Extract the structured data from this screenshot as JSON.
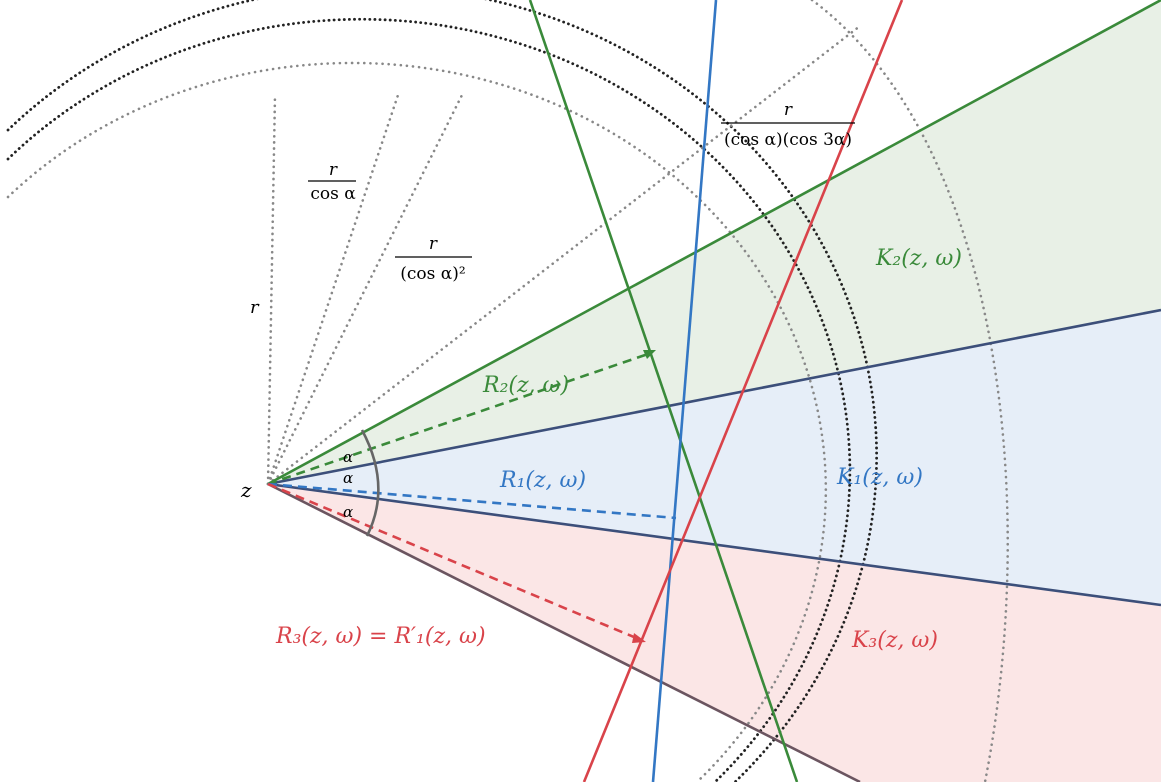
{
  "colors": {
    "green": "#3a8a3a",
    "blue": "#3377c4",
    "red": "#d9434a",
    "greenFill": "#e8f0e6",
    "blueFill": "#e6eef8",
    "redFill": "#fbe6e6",
    "dotted": "#888888",
    "dottedDark": "#222222",
    "boundary": "#3c4f7a"
  },
  "labels": {
    "z": "z",
    "r": "r",
    "frac1_num": "r",
    "frac1_den": "cos α",
    "frac2_num": "r",
    "frac2_den": "(cos α)²",
    "frac3_num": "r",
    "frac3_den": "(cos α)(cos 3α)",
    "alpha1": "α",
    "alpha2": "α",
    "alpha3": "α",
    "K1": "K₁(z, ω)",
    "K2": "K₂(z, ω)",
    "K3": "K₃(z, ω)",
    "R1": "R₁(z, ω)",
    "R2": "R₂(z, ω)",
    "R3": "R₃(z, ω) = R′₁(z, ω)"
  }
}
